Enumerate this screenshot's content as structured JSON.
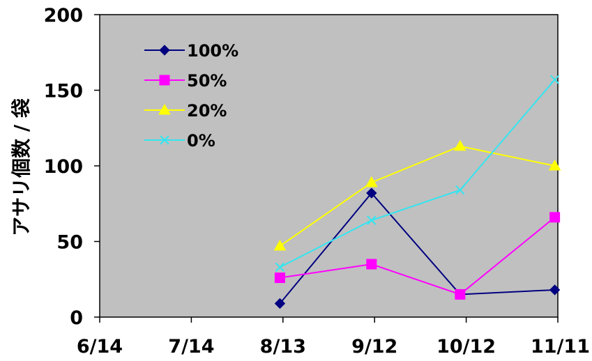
{
  "chart_data": {
    "type": "line",
    "title": "",
    "xlabel": "",
    "ylabel": "アサリ個数 / 袋",
    "ylim": [
      0,
      200
    ],
    "yticks": [
      0,
      50,
      100,
      150,
      200
    ],
    "xticks": [
      "6/14",
      "7/14",
      "8/13",
      "9/12",
      "10/12",
      "11/11"
    ],
    "grid": false,
    "legend_position": "top-left",
    "plot_background": "#c0c0c0",
    "series": [
      {
        "name": "100%",
        "color": "#000080",
        "marker": "diamond",
        "points": [
          {
            "x": "8/12",
            "y": 9
          },
          {
            "x": "9/11",
            "y": 82
          },
          {
            "x": "10/10",
            "y": 15
          },
          {
            "x": "11/10",
            "y": 18
          }
        ]
      },
      {
        "name": "50%",
        "color": "#ff00ff",
        "marker": "square",
        "points": [
          {
            "x": "8/12",
            "y": 26
          },
          {
            "x": "9/11",
            "y": 35
          },
          {
            "x": "10/10",
            "y": 15
          },
          {
            "x": "11/10",
            "y": 66
          }
        ]
      },
      {
        "name": "20%",
        "color": "#ffff00",
        "marker": "triangle",
        "points": [
          {
            "x": "8/12",
            "y": 47
          },
          {
            "x": "9/11",
            "y": 89
          },
          {
            "x": "10/10",
            "y": 113
          },
          {
            "x": "11/10",
            "y": 100
          }
        ]
      },
      {
        "name": "0%",
        "color": "#33e5f0",
        "marker": "x",
        "points": [
          {
            "x": "8/12",
            "y": 33
          },
          {
            "x": "9/11",
            "y": 64
          },
          {
            "x": "10/10",
            "y": 84
          },
          {
            "x": "11/10",
            "y": 157
          }
        ]
      }
    ]
  }
}
